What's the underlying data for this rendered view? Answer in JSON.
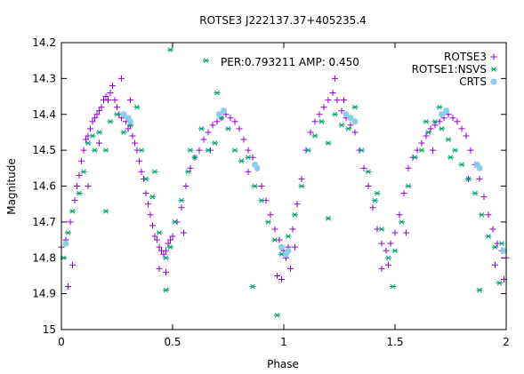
{
  "chart_data": {
    "type": "scatter",
    "title": "ROTSE3 J222137.37+405235.4",
    "xlabel": "Phase",
    "ylabel": "Magnitude",
    "annotation": "PER:0.793211 AMP: 0.450",
    "xlim": [
      0,
      2
    ],
    "ylim": [
      15,
      14.2
    ],
    "y_inverted": true,
    "x_ticks": [
      0,
      0.5,
      1,
      1.5,
      2
    ],
    "x_tick_labels": [
      "0",
      "0.5",
      "1",
      "1.5",
      "2"
    ],
    "y_ticks": [
      14.2,
      14.3,
      14.4,
      14.5,
      14.6,
      14.7,
      14.8,
      14.9,
      15
    ],
    "y_tick_labels": [
      "14.2",
      "14.3",
      "14.4",
      "14.5",
      "14.6",
      "14.7",
      "14.8",
      "14.9",
      "15"
    ],
    "grid": false,
    "legend_position": "top-right",
    "series": [
      {
        "name": "ROTSE3",
        "marker": "plus",
        "color": "#9400d3",
        "points": [
          [
            0.0,
            14.77
          ],
          [
            0.02,
            14.75
          ],
          [
            0.04,
            14.7
          ],
          [
            0.06,
            14.64
          ],
          [
            0.07,
            14.6
          ],
          [
            0.08,
            14.57
          ],
          [
            0.09,
            14.53
          ],
          [
            0.1,
            14.5
          ],
          [
            0.11,
            14.47
          ],
          [
            0.12,
            14.46
          ],
          [
            0.13,
            14.44
          ],
          [
            0.14,
            14.42
          ],
          [
            0.15,
            14.41
          ],
          [
            0.16,
            14.4
          ],
          [
            0.17,
            14.39
          ],
          [
            0.18,
            14.38
          ],
          [
            0.19,
            14.36
          ],
          [
            0.2,
            14.35
          ],
          [
            0.21,
            14.36
          ],
          [
            0.22,
            14.34
          ],
          [
            0.23,
            14.32
          ],
          [
            0.24,
            14.36
          ],
          [
            0.25,
            14.38
          ],
          [
            0.26,
            14.4
          ],
          [
            0.27,
            14.41
          ],
          [
            0.28,
            14.4
          ],
          [
            0.29,
            14.42
          ],
          [
            0.3,
            14.44
          ],
          [
            0.31,
            14.43
          ],
          [
            0.32,
            14.46
          ],
          [
            0.33,
            14.48
          ],
          [
            0.34,
            14.5
          ],
          [
            0.35,
            14.53
          ],
          [
            0.36,
            14.56
          ],
          [
            0.37,
            14.58
          ],
          [
            0.38,
            14.62
          ],
          [
            0.39,
            14.65
          ],
          [
            0.4,
            14.68
          ],
          [
            0.41,
            14.71
          ],
          [
            0.42,
            14.74
          ],
          [
            0.43,
            14.75
          ],
          [
            0.44,
            14.77
          ],
          [
            0.45,
            14.78
          ],
          [
            0.46,
            14.79
          ],
          [
            0.47,
            14.78
          ],
          [
            0.48,
            14.76
          ],
          [
            0.49,
            14.75
          ],
          [
            0.5,
            14.74
          ],
          [
            0.52,
            14.7
          ],
          [
            0.54,
            14.66
          ],
          [
            0.56,
            14.6
          ],
          [
            0.58,
            14.55
          ],
          [
            0.6,
            14.52
          ],
          [
            0.62,
            14.5
          ],
          [
            0.64,
            14.47
          ],
          [
            0.66,
            14.45
          ],
          [
            0.68,
            14.43
          ],
          [
            0.7,
            14.42
          ],
          [
            0.72,
            14.41
          ],
          [
            0.74,
            14.4
          ],
          [
            0.76,
            14.41
          ],
          [
            0.78,
            14.42
          ],
          [
            0.8,
            14.44
          ],
          [
            0.82,
            14.47
          ],
          [
            0.84,
            14.5
          ],
          [
            0.86,
            14.52
          ],
          [
            0.88,
            14.55
          ],
          [
            0.9,
            14.6
          ],
          [
            0.92,
            14.64
          ],
          [
            0.94,
            14.68
          ],
          [
            0.96,
            14.72
          ],
          [
            0.98,
            14.75
          ],
          [
            1.0,
            14.78
          ],
          [
            1.01,
            14.8
          ],
          [
            1.02,
            14.77
          ],
          [
            1.04,
            14.72
          ],
          [
            1.06,
            14.65
          ],
          [
            1.08,
            14.58
          ],
          [
            1.1,
            14.5
          ],
          [
            1.12,
            14.45
          ],
          [
            1.14,
            14.42
          ],
          [
            1.16,
            14.4
          ],
          [
            1.18,
            14.38
          ],
          [
            1.2,
            14.36
          ],
          [
            1.22,
            14.34
          ],
          [
            1.24,
            14.36
          ],
          [
            1.26,
            14.39
          ],
          [
            1.28,
            14.41
          ],
          [
            1.3,
            14.43
          ],
          [
            1.32,
            14.45
          ],
          [
            1.34,
            14.5
          ],
          [
            1.36,
            14.55
          ],
          [
            1.38,
            14.6
          ],
          [
            1.4,
            14.66
          ],
          [
            1.42,
            14.72
          ],
          [
            1.44,
            14.76
          ],
          [
            1.46,
            14.78
          ],
          [
            1.48,
            14.76
          ],
          [
            1.5,
            14.73
          ],
          [
            1.52,
            14.68
          ],
          [
            1.54,
            14.62
          ],
          [
            1.56,
            14.55
          ],
          [
            1.58,
            14.52
          ],
          [
            1.6,
            14.5
          ],
          [
            1.62,
            14.48
          ],
          [
            1.64,
            14.46
          ],
          [
            1.66,
            14.44
          ],
          [
            1.68,
            14.43
          ],
          [
            1.7,
            14.42
          ],
          [
            1.72,
            14.41
          ],
          [
            1.74,
            14.4
          ],
          [
            1.76,
            14.41
          ],
          [
            1.78,
            14.42
          ],
          [
            1.8,
            14.44
          ],
          [
            1.82,
            14.46
          ],
          [
            1.84,
            14.5
          ],
          [
            1.86,
            14.54
          ],
          [
            1.88,
            14.58
          ],
          [
            1.9,
            14.63
          ],
          [
            1.92,
            14.68
          ],
          [
            1.94,
            14.72
          ],
          [
            1.96,
            14.76
          ],
          [
            1.98,
            14.78
          ],
          [
            2.0,
            14.8
          ],
          [
            0.03,
            14.88
          ],
          [
            0.05,
            14.82
          ],
          [
            0.12,
            14.6
          ],
          [
            0.17,
            14.48
          ],
          [
            0.27,
            14.3
          ],
          [
            0.31,
            14.36
          ],
          [
            0.44,
            14.83
          ],
          [
            0.47,
            14.84
          ],
          [
            0.55,
            14.73
          ],
          [
            0.67,
            14.5
          ],
          [
            0.84,
            14.56
          ],
          [
            0.97,
            14.85
          ],
          [
            0.99,
            14.86
          ],
          [
            1.03,
            14.83
          ],
          [
            1.05,
            14.77
          ],
          [
            1.23,
            14.3
          ],
          [
            1.27,
            14.36
          ],
          [
            1.44,
            14.83
          ],
          [
            1.47,
            14.82
          ],
          [
            1.55,
            14.73
          ],
          [
            1.67,
            14.5
          ],
          [
            1.83,
            14.58
          ],
          [
            1.95,
            14.82
          ],
          [
            1.99,
            14.86
          ]
        ]
      },
      {
        "name": "ROTSE1:NSVS",
        "marker": "star",
        "color": "#009e73",
        "points": [
          [
            0.01,
            14.8
          ],
          [
            0.03,
            14.73
          ],
          [
            0.05,
            14.67
          ],
          [
            0.08,
            14.62
          ],
          [
            0.1,
            14.56
          ],
          [
            0.12,
            14.48
          ],
          [
            0.14,
            14.46
          ],
          [
            0.17,
            14.45
          ],
          [
            0.2,
            14.5
          ],
          [
            0.22,
            14.42
          ],
          [
            0.25,
            14.4
          ],
          [
            0.28,
            14.45
          ],
          [
            0.31,
            14.43
          ],
          [
            0.34,
            14.38
          ],
          [
            0.36,
            14.5
          ],
          [
            0.38,
            14.58
          ],
          [
            0.41,
            14.63
          ],
          [
            0.44,
            14.73
          ],
          [
            0.47,
            14.8
          ],
          [
            0.49,
            14.77
          ],
          [
            0.51,
            14.7
          ],
          [
            0.54,
            14.64
          ],
          [
            0.57,
            14.56
          ],
          [
            0.6,
            14.52
          ],
          [
            0.63,
            14.44
          ],
          [
            0.66,
            14.5
          ],
          [
            0.69,
            14.48
          ],
          [
            0.72,
            14.41
          ],
          [
            0.75,
            14.44
          ],
          [
            0.78,
            14.5
          ],
          [
            0.81,
            14.53
          ],
          [
            0.84,
            14.52
          ],
          [
            0.87,
            14.6
          ],
          [
            0.9,
            14.64
          ],
          [
            0.93,
            14.7
          ],
          [
            0.96,
            14.75
          ],
          [
            0.99,
            14.79
          ],
          [
            1.02,
            14.74
          ],
          [
            1.05,
            14.68
          ],
          [
            1.08,
            14.6
          ],
          [
            1.11,
            14.5
          ],
          [
            1.14,
            14.46
          ],
          [
            1.17,
            14.42
          ],
          [
            1.2,
            14.48
          ],
          [
            1.23,
            14.4
          ],
          [
            1.26,
            14.43
          ],
          [
            1.29,
            14.44
          ],
          [
            1.32,
            14.38
          ],
          [
            1.35,
            14.5
          ],
          [
            1.38,
            14.56
          ],
          [
            1.41,
            14.64
          ],
          [
            1.44,
            14.72
          ],
          [
            1.47,
            14.8
          ],
          [
            1.5,
            14.78
          ],
          [
            1.53,
            14.7
          ],
          [
            1.56,
            14.6
          ],
          [
            1.59,
            14.52
          ],
          [
            1.62,
            14.5
          ],
          [
            1.65,
            14.45
          ],
          [
            1.68,
            14.42
          ],
          [
            1.71,
            14.44
          ],
          [
            1.74,
            14.47
          ],
          [
            1.77,
            14.5
          ],
          [
            1.8,
            14.54
          ],
          [
            1.83,
            14.58
          ],
          [
            1.86,
            14.62
          ],
          [
            1.89,
            14.68
          ],
          [
            1.92,
            14.74
          ],
          [
            1.95,
            14.77
          ],
          [
            1.98,
            14.76
          ],
          [
            0.49,
            14.22
          ],
          [
            0.65,
            14.25
          ],
          [
            0.47,
            14.89
          ],
          [
            0.97,
            14.96
          ],
          [
            0.86,
            14.88
          ],
          [
            1.49,
            14.88
          ],
          [
            1.88,
            14.89
          ],
          [
            1.97,
            14.87
          ],
          [
            0.2,
            14.67
          ],
          [
            0.42,
            14.56
          ],
          [
            1.2,
            14.69
          ],
          [
            1.42,
            14.62
          ],
          [
            0.58,
            14.5
          ],
          [
            1.64,
            14.42
          ],
          [
            0.15,
            14.5
          ],
          [
            1.75,
            14.52
          ],
          [
            0.7,
            14.34
          ],
          [
            1.7,
            14.38
          ]
        ]
      },
      {
        "name": "CRTS",
        "marker": "asterisk",
        "color": "#87ceeb",
        "points": [
          [
            0.02,
            14.76
          ],
          [
            0.28,
            14.4
          ],
          [
            0.3,
            14.41
          ],
          [
            0.31,
            14.42
          ],
          [
            0.71,
            14.4
          ],
          [
            0.73,
            14.39
          ],
          [
            0.87,
            14.54
          ],
          [
            0.88,
            14.55
          ],
          [
            0.99,
            14.77
          ],
          [
            1.01,
            14.79
          ],
          [
            1.02,
            14.78
          ],
          [
            1.28,
            14.4
          ],
          [
            1.3,
            14.41
          ],
          [
            1.32,
            14.42
          ],
          [
            1.71,
            14.4
          ],
          [
            1.73,
            14.39
          ],
          [
            1.87,
            14.54
          ],
          [
            1.88,
            14.55
          ],
          [
            1.99,
            14.78
          ]
        ]
      }
    ]
  }
}
